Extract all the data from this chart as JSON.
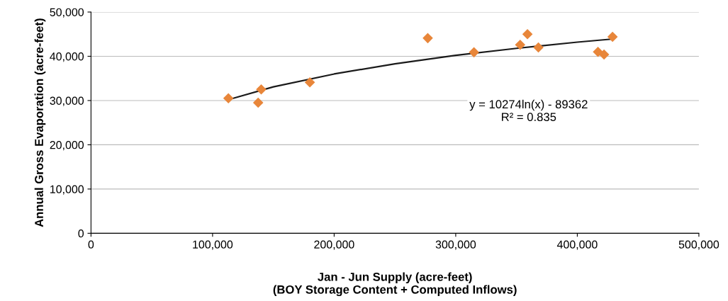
{
  "chart_data": {
    "type": "scatter",
    "xlabel": "Jan - Jun Supply (acre-feet)\n(BOY Storage Content + Computed Inflows)",
    "ylabel": "Annual Gross Evaporation (acre-feet)",
    "series": [
      {
        "color": "#e8863a",
        "marker": "diamond",
        "x": [
          113000,
          137500,
          140000,
          180000,
          277000,
          315000,
          353000,
          359000,
          368000,
          417000,
          422000,
          429000
        ],
        "values": [
          30500,
          29500,
          32500,
          34100,
          44100,
          40900,
          42600,
          45000,
          42000,
          41000,
          40400,
          44400
        ]
      },
      {
        "type": "line",
        "color": "#1a1a1a",
        "marker": "none",
        "line_style": "solid",
        "x": [
          113000,
          150000,
          200000,
          250000,
          300000,
          350000,
          400000,
          429000
        ],
        "values": [
          30200,
          33100,
          36000,
          38300,
          40200,
          41800,
          43200,
          43900
        ]
      }
    ],
    "xlim": [
      0,
      500000
    ],
    "xticks": [
      {
        "value": 0,
        "label": "0"
      },
      {
        "value": 100000,
        "label": "100,000"
      },
      {
        "value": 200000,
        "label": "200,000"
      },
      {
        "value": 300000,
        "label": "300,000"
      },
      {
        "value": 400000,
        "label": "400,000"
      },
      {
        "value": 500000,
        "label": "500,000"
      }
    ],
    "ylim": [
      0,
      50000
    ],
    "yticks": [
      {
        "value": 0,
        "label": "0"
      },
      {
        "value": 10000,
        "label": "10,000"
      },
      {
        "value": 20000,
        "label": "20,000"
      },
      {
        "value": 30000,
        "label": "30,000"
      },
      {
        "value": 40000,
        "label": "40,000"
      },
      {
        "value": 50000,
        "label": "50,000"
      }
    ],
    "grid": "y",
    "annotations": [
      "y = 10274ln(x) - 89362\nR² = 0.835"
    ]
  }
}
